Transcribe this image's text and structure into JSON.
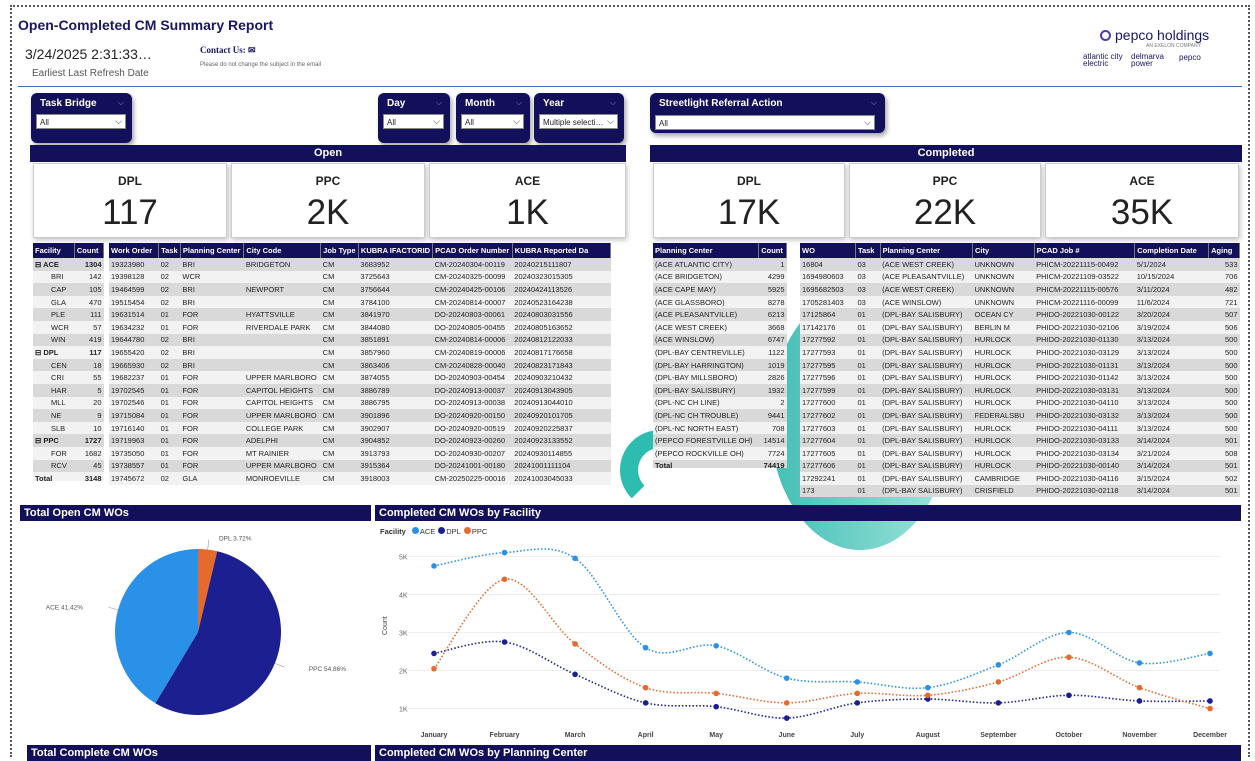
{
  "header": {
    "title": "Open-Completed CM Summary Report",
    "refresh_value": "3/24/2025 2:31:33…",
    "refresh_label": "Earliest Last Refresh Date",
    "contact_label": "Contact Us:",
    "contact_note": "Please do not change the subject in the email",
    "logo_main": "pepco holdings",
    "logo_sub": "AN EXELON COMPANY",
    "logo_brands": [
      "atlantic city electric",
      "delmarva power",
      "pepco"
    ]
  },
  "slicers": {
    "task_bridge": {
      "label": "Task Bridge",
      "value": "All"
    },
    "day": {
      "label": "Day",
      "value": "All"
    },
    "month": {
      "label": "Month",
      "value": "All"
    },
    "year": {
      "label": "Year",
      "value": "Multiple selecti…"
    },
    "streetlight": {
      "label": "Streetlight Referral Action",
      "value": "All"
    }
  },
  "open": {
    "title": "Open",
    "cards": [
      {
        "label": "DPL",
        "value": "117"
      },
      {
        "label": "PPC",
        "value": "2K"
      },
      {
        "label": "ACE",
        "value": "1K"
      }
    ]
  },
  "completed": {
    "title": "Completed",
    "cards": [
      {
        "label": "DPL",
        "value": "17K"
      },
      {
        "label": "PPC",
        "value": "22K"
      },
      {
        "label": "ACE",
        "value": "35K"
      }
    ]
  },
  "facility_table": {
    "headers": [
      "Facility",
      "Count"
    ],
    "rows": [
      [
        "⊟ ACE",
        "1304",
        true
      ],
      [
        "BRI",
        "142",
        false
      ],
      [
        "CAP",
        "105",
        false
      ],
      [
        "GLA",
        "470",
        false
      ],
      [
        "PLE",
        "111",
        false
      ],
      [
        "WCR",
        "57",
        false
      ],
      [
        "WIN",
        "419",
        false
      ],
      [
        "⊟ DPL",
        "117",
        true
      ],
      [
        "CEN",
        "18",
        false
      ],
      [
        "CRI",
        "55",
        false
      ],
      [
        "HAR",
        "5",
        false
      ],
      [
        "MLL",
        "20",
        false
      ],
      [
        "NE",
        "9",
        false
      ],
      [
        "SLB",
        "10",
        false
      ],
      [
        "⊟ PPC",
        "1727",
        true
      ],
      [
        "FOR",
        "1682",
        false
      ],
      [
        "RCV",
        "45",
        false
      ],
      [
        "Total",
        "3148",
        true
      ]
    ]
  },
  "open_wo_table": {
    "headers": [
      "Work Order",
      "Task",
      "Planning Center",
      "City Code",
      "Job Type",
      "KUBRA IFACTORID",
      "PCAD Order Number",
      "KUBRA Reported Da"
    ],
    "rows": [
      [
        "19323980",
        "02",
        "BRI",
        "BRIDGETON",
        "CM",
        "3683952",
        "CM-20240304-00119",
        "20240215111807"
      ],
      [
        "19398128",
        "02",
        "WCR",
        "",
        "CM",
        "3725643",
        "CM-20240325-00099",
        "20240323015305"
      ],
      [
        "19464599",
        "02",
        "BRI",
        "NEWPORT",
        "CM",
        "3756644",
        "CM-20240425-00106",
        "20240424113526"
      ],
      [
        "19515454",
        "02",
        "BRI",
        "",
        "CM",
        "3784100",
        "CM-20240814-00007",
        "20240523164238"
      ],
      [
        "19631514",
        "01",
        "FOR",
        "HYATTSVILLE",
        "CM",
        "3841970",
        "DO-20240803-00061",
        "20240803031556"
      ],
      [
        "19634232",
        "01",
        "FOR",
        "RIVERDALE PARK",
        "CM",
        "3844080",
        "DO-20240805-00455",
        "20240805163652"
      ],
      [
        "19644780",
        "02",
        "BRI",
        "",
        "CM",
        "3851891",
        "CM-20240814-00006",
        "20240812122033"
      ],
      [
        "19655420",
        "02",
        "BRI",
        "",
        "CM",
        "3857960",
        "CM-20240819-00006",
        "20240817176658"
      ],
      [
        "19665930",
        "02",
        "BRI",
        "",
        "CM",
        "3863406",
        "CM-20240828-00040",
        "20240823171843"
      ],
      [
        "19682237",
        "01",
        "FOR",
        "UPPER MARLBORO",
        "CM",
        "3874055",
        "DO-20240903-00454",
        "20240903210432"
      ],
      [
        "19702545",
        "01",
        "FOR",
        "CAPITOL HEIGHTS",
        "CM",
        "3886789",
        "DO-20240913-00037",
        "20240913043905"
      ],
      [
        "19702546",
        "01",
        "FOR",
        "CAPITOL HEIGHTS",
        "CM",
        "3886795",
        "DO-20240913-00038",
        "20240913044010"
      ],
      [
        "19715084",
        "01",
        "FOR",
        "UPPER MARLBORO",
        "CM",
        "3901896",
        "DO-20240920-00150",
        "20240920101705"
      ],
      [
        "19716140",
        "01",
        "FOR",
        "COLLEGE PARK",
        "CM",
        "3902907",
        "DO-20240920-00519",
        "20240920225837"
      ],
      [
        "19719963",
        "01",
        "FOR",
        "ADELPHI",
        "CM",
        "3904852",
        "DO-20240923-00260",
        "20240923133552"
      ],
      [
        "19735050",
        "01",
        "FOR",
        "MT RAINIER",
        "CM",
        "3913793",
        "DO-20240930-00207",
        "20240930114855"
      ],
      [
        "19738557",
        "01",
        "FOR",
        "UPPER MARLBORO",
        "CM",
        "3915364",
        "DO-20241001-00180",
        "20241001111104"
      ],
      [
        "19745672",
        "02",
        "GLA",
        "MONROEVILLE",
        "CM",
        "3918003",
        "CM-20250225-00016",
        "20241003045033"
      ]
    ]
  },
  "planning_center_table": {
    "headers": [
      "Planning Center",
      "Count"
    ],
    "rows": [
      [
        "(ACE ATLANTIC CITY)",
        "1"
      ],
      [
        "(ACE BRIDGETON)",
        "4299"
      ],
      [
        "(ACE CAPE MAY)",
        "5925"
      ],
      [
        "(ACE GLASSBORO)",
        "8278"
      ],
      [
        "(ACE PLEASANTVILLE)",
        "6213"
      ],
      [
        "(ACE WEST CREEK)",
        "3668"
      ],
      [
        "(ACE WINSLOW)",
        "6747"
      ],
      [
        "(DPL-BAY CENTREVILLE)",
        "1122"
      ],
      [
        "(DPL-BAY HARRINGTON)",
        "1019"
      ],
      [
        "(DPL-BAY MILLSBORO)",
        "2826"
      ],
      [
        "(DPL-BAY SALISBURY)",
        "1932"
      ],
      [
        "(DPL-NC CH LINE)",
        "2"
      ],
      [
        "(DPL-NC CH TROUBLE)",
        "9441"
      ],
      [
        "(DPL-NC NORTH EAST)",
        "708"
      ],
      [
        "(PEPCO FORESTVILLE OH)",
        "14514"
      ],
      [
        "(PEPCO ROCKVILLE OH)",
        "7724"
      ],
      [
        "Total",
        "74419"
      ]
    ]
  },
  "completed_wo_table": {
    "headers": [
      "WO",
      "Task",
      "Planning Center",
      "City",
      "PCAD Job #",
      "Completion Date",
      "Aging"
    ],
    "rows": [
      [
        "16804",
        "03",
        "(ACE WEST CREEK)",
        "UNKNOWN",
        "PHICM-20221115-00492",
        "5/1/2024",
        "533"
      ],
      [
        "1694980603",
        "03",
        "(ACE PLEASANTVILLE)",
        "UNKNOWN",
        "PHICM-20221109-03522",
        "10/15/2024",
        "706"
      ],
      [
        "1695682503",
        "03",
        "(ACE WEST CREEK)",
        "UNKNOWN",
        "PHICM-20221115-00576",
        "3/11/2024",
        "482"
      ],
      [
        "1705281403",
        "03",
        "(ACE WINSLOW)",
        "UNKNOWN",
        "PHICM-20221116-00099",
        "11/6/2024",
        "721"
      ],
      [
        "17125864",
        "01",
        "(DPL-BAY SALISBURY)",
        "OCEAN CY",
        "PHIDO-20221030-00122",
        "3/20/2024",
        "507"
      ],
      [
        "17142176",
        "01",
        "(DPL-BAY SALISBURY)",
        "BERLIN M",
        "PHIDO-20221030-02106",
        "3/19/2024",
        "506"
      ],
      [
        "17277592",
        "01",
        "(DPL-BAY SALISBURY)",
        "HURLOCK",
        "PHIDO-20221030-01130",
        "3/13/2024",
        "500"
      ],
      [
        "17277593",
        "01",
        "(DPL-BAY SALISBURY)",
        "HURLOCK",
        "PHIDO-20221030-03129",
        "3/13/2024",
        "500"
      ],
      [
        "17277595",
        "01",
        "(DPL-BAY SALISBURY)",
        "HURLOCK",
        "PHIDO-20221030-01131",
        "3/13/2024",
        "500"
      ],
      [
        "17277596",
        "01",
        "(DPL-BAY SALISBURY)",
        "HURLOCK",
        "PHIDO-20221030-01142",
        "3/13/2024",
        "500"
      ],
      [
        "17277599",
        "01",
        "(DPL-BAY SALISBURY)",
        "HURLOCK",
        "PHIDO-20221030-03131",
        "3/13/2024",
        "500"
      ],
      [
        "17277600",
        "01",
        "(DPL-BAY SALISBURY)",
        "HURLOCK",
        "PHIDO-20221030-04110",
        "3/13/2024",
        "500"
      ],
      [
        "17277602",
        "01",
        "(DPL-BAY SALISBURY)",
        "FEDERALSBU",
        "PHIDO-20221030-03132",
        "3/13/2024",
        "500"
      ],
      [
        "17277603",
        "01",
        "(DPL-BAY SALISBURY)",
        "HURLOCK",
        "PHIDO-20221030-04111",
        "3/13/2024",
        "500"
      ],
      [
        "17277604",
        "01",
        "(DPL-BAY SALISBURY)",
        "HURLOCK",
        "PHIDO-20221030-03133",
        "3/14/2024",
        "501"
      ],
      [
        "17277605",
        "01",
        "(DPL-BAY SALISBURY)",
        "HURLOCK",
        "PHIDO-20221030-03134",
        "3/21/2024",
        "508"
      ],
      [
        "17277606",
        "01",
        "(DPL-BAY SALISBURY)",
        "HURLOCK",
        "PHIDO-20221030-00140",
        "3/14/2024",
        "501"
      ],
      [
        "17292241",
        "01",
        "(DPL-BAY SALISBURY)",
        "CAMBRIDGE",
        "PHIDO-20221030-04116",
        "3/15/2024",
        "502"
      ],
      [
        "173",
        "01",
        "(DPL-BAY SALISBURY)",
        "CRISFIELD",
        "PHIDO-20221030-02118",
        "3/14/2024",
        "501"
      ]
    ]
  },
  "sections": {
    "total_open": "Total Open CM WOs",
    "completed_by_facility": "Completed CM WOs by Facility",
    "total_complete": "Total Complete CM WOs",
    "completed_by_pc": "Completed CM WOs by Planning Center"
  },
  "colors": {
    "navy": "#12105a",
    "ace": "#2a91e8",
    "dpl": "#1c1f8f",
    "ppc": "#e56a2e"
  },
  "chart_data": [
    {
      "type": "pie",
      "title": "Total Open CM WOs",
      "slices": [
        {
          "label": "DPL",
          "value": 3.72,
          "display": "DPL 3.72%",
          "color": "#e56a2e"
        },
        {
          "label": "PPC",
          "value": 54.86,
          "display": "PPC 54.86%",
          "color": "#1c1f8f"
        },
        {
          "label": "ACE",
          "value": 41.42,
          "display": "ACE 41.42%",
          "color": "#2a91e8"
        }
      ]
    },
    {
      "type": "line",
      "title": "Completed CM WOs by Facility",
      "legend_title": "Facility",
      "ylabel": "Count",
      "categories": [
        "January",
        "February",
        "March",
        "April",
        "May",
        "June",
        "July",
        "August",
        "September",
        "October",
        "November",
        "December"
      ],
      "yticks": [
        "1K",
        "2K",
        "3K",
        "4K",
        "5K"
      ],
      "ylim": [
        700,
        5300
      ],
      "series": [
        {
          "name": "ACE",
          "color": "#2a91e8",
          "values": [
            4750,
            5100,
            4950,
            2600,
            2650,
            1800,
            1700,
            1550,
            2150,
            3000,
            2200,
            2450
          ]
        },
        {
          "name": "DPL",
          "color": "#1c1f8f",
          "values": [
            2450,
            2750,
            1900,
            1150,
            1050,
            750,
            1150,
            1250,
            1150,
            1350,
            1200,
            1200
          ]
        },
        {
          "name": "PPC",
          "color": "#e56a2e",
          "values": [
            2050,
            4400,
            2700,
            1550,
            1400,
            1150,
            1400,
            1350,
            1700,
            2350,
            1550,
            1000
          ]
        }
      ]
    }
  ]
}
